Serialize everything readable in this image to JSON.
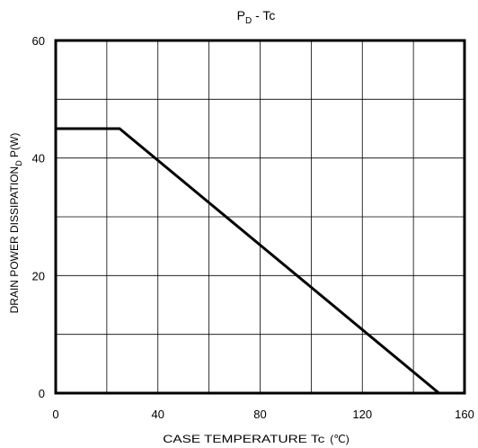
{
  "chart_data": {
    "type": "line",
    "title": {
      "main": "P",
      "sub": "D",
      "rest": " - Tc"
    },
    "xlabel": {
      "main": "CASE TEMPERATURE Tc",
      "unit": "(℃)"
    },
    "ylabel": {
      "main": "DRAIN POWER DISSIPATION",
      "sub": "D",
      "rest": " P(W)"
    },
    "xlim": [
      0,
      160
    ],
    "ylim": [
      0,
      60
    ],
    "x_ticks": [
      0,
      40,
      80,
      120,
      160
    ],
    "y_ticks": [
      0,
      20,
      40,
      60
    ],
    "x_ticks_labels": [
      "0",
      "40",
      "80",
      "120",
      "160"
    ],
    "y_ticks_labels": [
      "0",
      "20",
      "40",
      "60"
    ],
    "x_grid_step": 20,
    "y_grid_step": 10,
    "grid": true,
    "series": [
      {
        "x": [
          0,
          25,
          150
        ],
        "y": [
          45,
          45,
          0
        ]
      }
    ],
    "colors": {
      "line": "#000000",
      "grid": "#000000",
      "frame": "#000000"
    }
  }
}
